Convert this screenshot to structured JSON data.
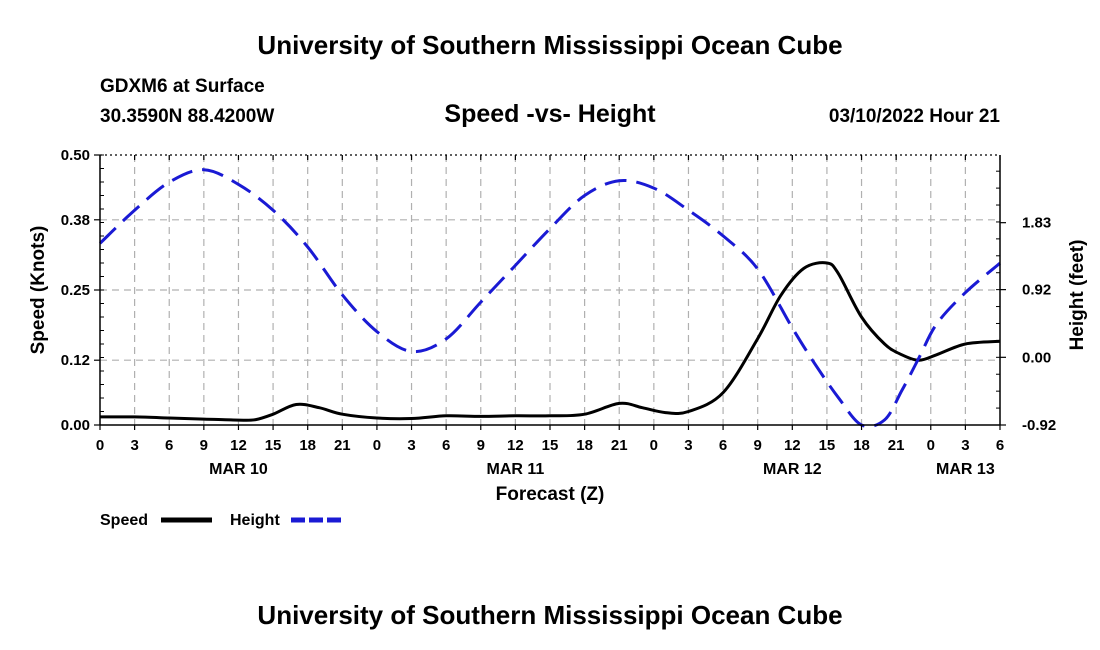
{
  "header": {
    "main_title": "University of Southern Mississippi Ocean Cube",
    "station": "GDXM6 at Surface",
    "coords": "30.3590N  88.4200W",
    "subtitle": "Speed -vs- Height",
    "datetime": "03/10/2022 Hour 21"
  },
  "footer": {
    "title": "University of Southern Mississippi Ocean Cube"
  },
  "chart_data": {
    "type": "line",
    "title": "Speed -vs- Height",
    "xlabel": "Forecast (Z)",
    "ylabel": "Speed (Knots)",
    "y2label": "Height (feet)",
    "x_start_hour": 0,
    "x_end_hour": 78,
    "x_tick_labels": [
      "0",
      "3",
      "6",
      "9",
      "12",
      "15",
      "18",
      "21",
      "0",
      "3",
      "6",
      "9",
      "12",
      "15",
      "18",
      "21",
      "0",
      "3",
      "6",
      "9",
      "12",
      "15",
      "18",
      "21",
      "0",
      "3",
      "6"
    ],
    "date_labels": [
      {
        "hour": 12,
        "label": "MAR 10"
      },
      {
        "hour": 36,
        "label": "MAR 11"
      },
      {
        "hour": 60,
        "label": "MAR 12"
      },
      {
        "hour": 75,
        "label": "MAR 13"
      }
    ],
    "y_left": {
      "min": 0.0,
      "max": 0.5,
      "ticks": [
        "0.00",
        "0.12",
        "0.25",
        "0.38",
        "0.50"
      ]
    },
    "y_right": {
      "min": -0.92,
      "max": 2.75,
      "ticks": [
        "-0.92",
        "0.00",
        "0.92",
        "1.83"
      ],
      "tick_values": [
        -0.92,
        0.0,
        0.92,
        1.83
      ]
    },
    "grid": true,
    "series": [
      {
        "name": "Speed",
        "axis": "left",
        "color": "#000000",
        "dash": "solid",
        "x": [
          0,
          3,
          6,
          9,
          12,
          13.5,
          15,
          17,
          19,
          21,
          24,
          27,
          30,
          33,
          36,
          39,
          42,
          45,
          47,
          49,
          51,
          54,
          57,
          59,
          61,
          63,
          64,
          66,
          68,
          69.5,
          71,
          72.5,
          75,
          78
        ],
        "y": [
          0.015,
          0.015,
          0.013,
          0.011,
          0.009,
          0.01,
          0.02,
          0.038,
          0.032,
          0.02,
          0.013,
          0.012,
          0.017,
          0.016,
          0.017,
          0.017,
          0.02,
          0.04,
          0.032,
          0.023,
          0.025,
          0.06,
          0.16,
          0.24,
          0.29,
          0.3,
          0.28,
          0.2,
          0.15,
          0.13,
          0.12,
          0.13,
          0.15,
          0.155
        ]
      },
      {
        "name": "Height",
        "axis": "right",
        "color": "#1a1ad4",
        "dash": "dashed",
        "x": [
          0,
          3,
          6,
          9,
          12,
          15,
          18,
          21,
          24,
          27,
          30,
          33,
          36,
          39,
          42,
          45,
          48,
          51,
          54,
          57,
          60,
          62,
          64,
          66,
          68,
          69.5,
          71,
          72.5,
          75,
          78
        ],
        "y": [
          1.55,
          2.0,
          2.38,
          2.55,
          2.35,
          2.0,
          1.5,
          0.85,
          0.35,
          0.08,
          0.25,
          0.75,
          1.25,
          1.75,
          2.2,
          2.4,
          2.3,
          2.0,
          1.65,
          1.2,
          0.4,
          -0.1,
          -0.55,
          -0.92,
          -0.85,
          -0.45,
          0.0,
          0.45,
          0.88,
          1.28
        ]
      }
    ],
    "legend": {
      "position": "bottom-left",
      "items": [
        {
          "label": "Speed",
          "color": "#000000",
          "dash": "solid"
        },
        {
          "label": "Height",
          "color": "#1a1ad4",
          "dash": "dashed"
        }
      ]
    }
  }
}
